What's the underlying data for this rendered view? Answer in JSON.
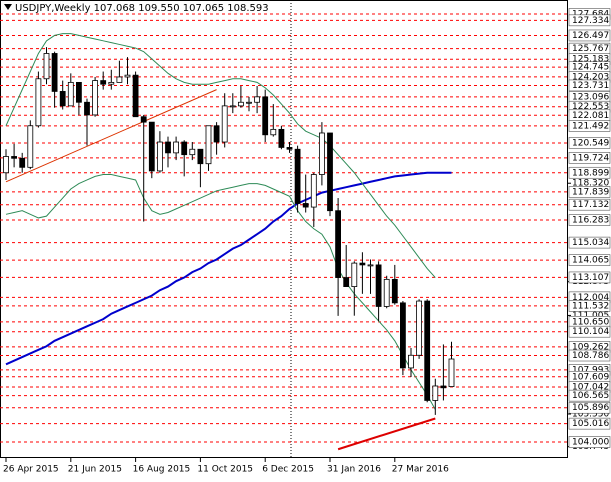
{
  "chart_data": {
    "type": "candlestick",
    "title": "USDJPY,Weekly  107.068 109.550 107.065 108.593",
    "categories": [
      "26 Apr 2015",
      null,
      null,
      null,
      null,
      null,
      null,
      null,
      "21 Jun 2015",
      null,
      null,
      null,
      null,
      null,
      null,
      null,
      "16 Aug 2015",
      null,
      null,
      null,
      null,
      null,
      null,
      null,
      "11 Oct 2015",
      null,
      null,
      null,
      null,
      null,
      null,
      null,
      "6 Dec 2015",
      null,
      null,
      null,
      null,
      null,
      null,
      null,
      "31 Jan 2016",
      null,
      null,
      null,
      null,
      null,
      null,
      null,
      "27 Mar 2016",
      null,
      null,
      null,
      null,
      null,
      null,
      null
    ],
    "open": [
      118.9,
      119.8,
      119.7,
      119.2,
      121.5,
      124.1,
      125.5,
      123.4,
      122.6,
      123.9,
      122.8,
      122.1,
      124.0,
      123.8,
      123.9,
      124.2,
      124.3,
      122.0,
      121.7,
      119.0,
      120.6,
      120.0,
      120.6,
      119.9,
      120.2,
      119.4,
      121.5,
      120.6,
      122.6,
      122.6,
      122.8,
      122.8,
      123.1,
      121.0,
      121.3,
      120.3,
      120.2,
      117.2,
      117.0,
      118.8,
      121.1,
      116.8,
      113.1,
      112.6,
      113.9,
      113.8,
      113.8,
      111.5,
      113.0,
      111.7,
      108.1,
      108.8,
      111.8,
      106.3,
      107.1,
      107.068
    ],
    "high": [
      120.2,
      120.5,
      120.0,
      121.8,
      124.5,
      125.85,
      125.6,
      124.0,
      124.4,
      123.9,
      123.0,
      124.2,
      124.5,
      124.6,
      125.1,
      125.3,
      124.5,
      122.1,
      121.7,
      121.2,
      120.9,
      120.9,
      120.7,
      120.6,
      120.2,
      121.5,
      121.7,
      123.3,
      123.3,
      123.7,
      123.1,
      123.7,
      123.5,
      122.7,
      121.5,
      120.6,
      120.4,
      118.8,
      118.9,
      121.7,
      121.1,
      117.5,
      114.9,
      114.0,
      114.5,
      114.1,
      114.0,
      113.2,
      113.8,
      111.8,
      109.2,
      111.9,
      111.9,
      107.5,
      109.4,
      109.55
    ],
    "low": [
      118.5,
      119.2,
      118.9,
      119.1,
      121.4,
      123.8,
      122.5,
      122.4,
      122.6,
      122.1,
      120.4,
      122.0,
      123.5,
      123.5,
      123.9,
      123.8,
      122.0,
      116.2,
      118.6,
      118.9,
      119.2,
      119.6,
      118.7,
      119.6,
      118.1,
      119.0,
      119.9,
      120.3,
      122.2,
      122.5,
      122.3,
      122.2,
      120.6,
      120.9,
      120.2,
      120.0,
      116.7,
      116.7,
      115.9,
      118.2,
      116.5,
      110.98,
      112.6,
      110.99,
      112.2,
      112.2,
      110.7,
      111.4,
      111.6,
      107.7,
      107.6,
      108.6,
      106.2,
      105.5,
      106.3,
      107.065
    ],
    "close": [
      119.8,
      119.7,
      119.2,
      121.5,
      124.1,
      125.5,
      123.4,
      122.6,
      123.9,
      122.8,
      122.1,
      124.0,
      123.8,
      123.9,
      124.2,
      124.3,
      122.0,
      121.7,
      119.0,
      120.6,
      120.0,
      120.6,
      119.9,
      120.2,
      119.4,
      121.5,
      120.6,
      122.6,
      122.6,
      122.8,
      122.8,
      123.1,
      121.0,
      121.3,
      120.3,
      120.2,
      117.2,
      117.0,
      118.8,
      121.1,
      116.8,
      113.1,
      112.6,
      113.9,
      113.8,
      113.8,
      111.5,
      113.0,
      111.7,
      108.1,
      108.8,
      111.8,
      106.3,
      107.1,
      107.0,
      108.593
    ],
    "up_color": "#ffffff",
    "down_color": "#000000",
    "lines": [
      {
        "color": "#0000cc",
        "width": 2,
        "values": [
          108.3,
          108.5,
          108.7,
          108.9,
          109.1,
          109.3,
          109.6,
          109.8,
          110.0,
          110.2,
          110.4,
          110.6,
          110.8,
          111.1,
          111.3,
          111.5,
          111.7,
          111.9,
          112.1,
          112.4,
          112.6,
          112.9,
          113.1,
          113.4,
          113.6,
          113.9,
          114.1,
          114.4,
          114.7,
          114.9,
          115.2,
          115.5,
          115.8,
          116.2,
          116.5,
          116.9,
          117.2,
          117.4,
          117.6,
          117.8,
          117.9,
          118.0,
          118.1,
          118.2,
          118.3,
          118.4,
          118.5,
          118.6,
          118.7,
          118.75,
          118.8,
          118.85,
          118.9,
          118.9,
          118.9,
          118.9
        ]
      },
      {
        "color": "#2e8b57",
        "width": 1,
        "values": [
          121.5,
          122.5,
          123.5,
          124.5,
          125.5,
          126.2,
          126.5,
          126.6,
          126.6,
          126.5,
          126.4,
          126.3,
          126.2,
          126.1,
          126.0,
          125.9,
          125.8,
          125.6,
          125.2,
          124.8,
          124.4,
          124.1,
          123.9,
          123.8,
          123.8,
          123.8,
          123.9,
          124.0,
          124.1,
          124.1,
          124.0,
          123.9,
          123.6,
          123.2,
          122.7,
          122.2,
          121.6,
          121.2,
          121.0,
          120.8,
          120.4,
          119.9,
          119.4,
          118.9,
          118.3,
          117.7,
          117.1,
          116.5,
          116.0,
          115.4,
          114.8,
          114.2,
          113.6,
          113.1,
          null,
          null
        ]
      },
      {
        "color": "#2e8b57",
        "width": 1,
        "values": [
          116.6,
          116.7,
          116.8,
          116.6,
          116.4,
          116.5,
          117.0,
          117.5,
          118.0,
          118.3,
          118.5,
          118.7,
          118.8,
          118.8,
          118.7,
          118.6,
          118.5,
          117.5,
          116.8,
          116.6,
          116.7,
          116.9,
          117.1,
          117.3,
          117.5,
          117.7,
          117.9,
          118.0,
          118.1,
          118.2,
          118.3,
          118.3,
          118.2,
          118.0,
          117.8,
          117.6,
          116.8,
          116.2,
          115.8,
          115.5,
          114.8,
          113.6,
          112.8,
          112.2,
          111.7,
          111.2,
          110.7,
          110.2,
          109.6,
          108.8,
          108.0,
          107.3,
          106.6,
          105.8,
          null,
          null
        ]
      },
      {
        "color": "#dd3300",
        "width": 1,
        "values": [
          118.4,
          null,
          null,
          null,
          null,
          null,
          null,
          null,
          null,
          null,
          null,
          null,
          null,
          null,
          null,
          null,
          null,
          null,
          null,
          null,
          null,
          null,
          null,
          null,
          null,
          null,
          123.5,
          null,
          null,
          null,
          null,
          null,
          null,
          null,
          null,
          null,
          null,
          null,
          null,
          null,
          null,
          null,
          null,
          null,
          null,
          null,
          null,
          null,
          null,
          null,
          null,
          null,
          null,
          null,
          null,
          null
        ],
        "connect_gaps": true
      },
      {
        "color": "#dd0000",
        "width": 2,
        "values": [
          null,
          null,
          null,
          null,
          null,
          null,
          null,
          null,
          null,
          null,
          null,
          null,
          null,
          null,
          null,
          null,
          null,
          null,
          null,
          null,
          null,
          null,
          null,
          null,
          null,
          null,
          null,
          null,
          null,
          null,
          null,
          null,
          null,
          null,
          null,
          null,
          null,
          null,
          null,
          null,
          null,
          103.6,
          null,
          null,
          null,
          null,
          null,
          null,
          null,
          null,
          null,
          null,
          null,
          105.3,
          null,
          null
        ],
        "connect_gaps": true
      }
    ],
    "levels": [
      127.684,
      127.334,
      126.497,
      125.767,
      125.183,
      124.745,
      124.203,
      123.731,
      123.096,
      122.553,
      122.081,
      121.492,
      120.549,
      119.724,
      118.899,
      117.839,
      117.132,
      116.283,
      115.034,
      114.065,
      113.107,
      112.004,
      111.532,
      {
        "value": 110.65,
        "label": "110.650"
      },
      110.104,
      109.262,
      108.786,
      107.993,
      107.609,
      107.042,
      106.565,
      105.896,
      105.016,
      {
        "value": 104,
        "label": "104.000"
      }
    ],
    "level_color": "#ff0000",
    "yticks": [
      {
        "value": 118.32,
        "label": "118.320"
      },
      112.875,
      111.005,
      {
        "value": 105.55,
        "label": "105.550"
      },
      103.745
    ],
    "ylim": [
      103.115,
      128.459
    ]
  }
}
